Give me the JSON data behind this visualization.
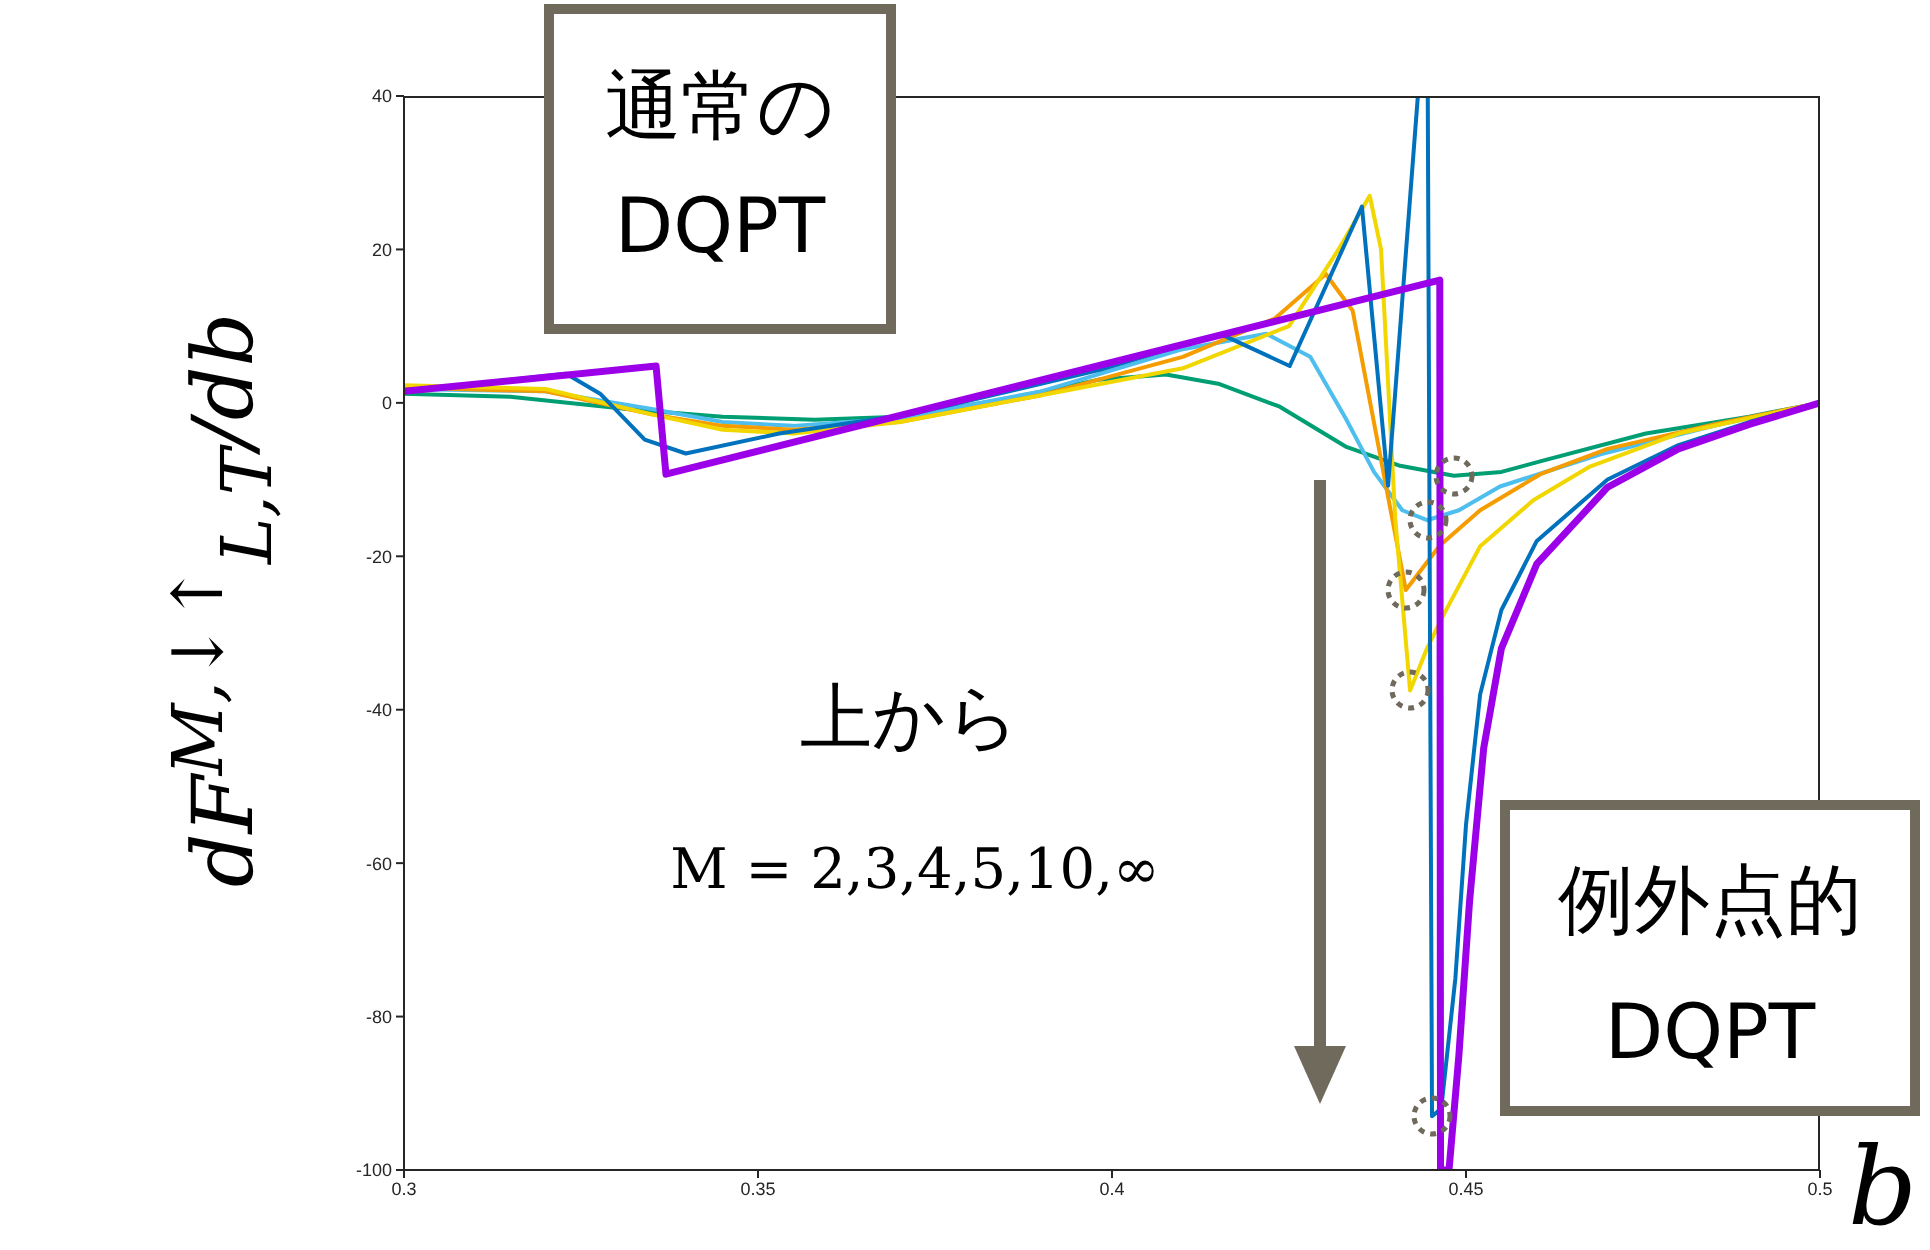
{
  "chart_data": {
    "type": "line",
    "xlabel": "b",
    "ylabel": "dF$^{M,↓↑}$$_{L,T}$/db",
    "annotations": [
      "通常の\nDQPT",
      "上から",
      "M = 2,3,4,5,10,∞",
      "例外点的\nDQPT"
    ],
    "xlim": [
      0.3,
      0.5
    ],
    "xticks": [
      0.3,
      0.35,
      0.4,
      0.45,
      0.5
    ],
    "ylim": [
      -100,
      40
    ],
    "yticks": [
      -100,
      -80,
      -60,
      -40,
      -20,
      0,
      20,
      40
    ],
    "grid": false,
    "legend": false,
    "series": [
      {
        "color": "#009e73",
        "x": [
          0.3,
          0.315,
          0.3325,
          0.345,
          0.358,
          0.37,
          0.385,
          0.398,
          0.4076,
          0.415,
          0.4237,
          0.433,
          0.4407,
          0.4483,
          0.455,
          0.461,
          0.4754,
          0.49,
          0.5
        ],
        "values": [
          1.2,
          0.8,
          -0.9,
          -1.8,
          -2.2,
          -1.8,
          0.5,
          3,
          3.7,
          2.5,
          -0.5,
          -5.7,
          -8.2,
          -9.5,
          -9,
          -7.5,
          -4,
          -1.8,
          0
        ]
      },
      {
        "color": "#4dbeee",
        "x": [
          0.3,
          0.32,
          0.335,
          0.345,
          0.355,
          0.37,
          0.39,
          0.41,
          0.4218,
          0.428,
          0.433,
          0.437,
          0.441,
          0.4445,
          0.449,
          0.4548,
          0.469,
          0.485,
          0.5
        ],
        "values": [
          1.8,
          1.5,
          -0.8,
          -2.5,
          -3,
          -2,
          1.5,
          7,
          9,
          6,
          -2,
          -9,
          -14,
          -15.3,
          -14,
          -10.9,
          -6.7,
          -3,
          0
        ]
      },
      {
        "color": "#f59d00",
        "x": [
          0.3,
          0.32,
          0.335,
          0.345,
          0.355,
          0.37,
          0.39,
          0.41,
          0.423,
          0.4302,
          0.434,
          0.4375,
          0.4415,
          0.4463,
          0.452,
          0.4605,
          0.47,
          0.485,
          0.5
        ],
        "values": [
          2,
          1.5,
          -1.5,
          -3,
          -3.5,
          -2.5,
          1,
          6,
          11,
          16.8,
          12,
          -5,
          -24.4,
          -18.6,
          -14,
          -9.3,
          -6,
          -2.8,
          0
        ]
      },
      {
        "color": "#f2d600",
        "x": [
          0.3,
          0.32,
          0.335,
          0.345,
          0.355,
          0.37,
          0.39,
          0.41,
          0.425,
          0.432,
          0.4364,
          0.438,
          0.44,
          0.4421,
          0.4445,
          0.4469,
          0.452,
          0.4595,
          0.4675,
          0.48,
          0.5
        ],
        "values": [
          2.3,
          1.8,
          -1.5,
          -3.5,
          -4,
          -2.5,
          1,
          4.5,
          10,
          20,
          27,
          20,
          -15,
          -37.5,
          -32,
          -27.5,
          -18.7,
          -12.7,
          -8.3,
          -4,
          0
        ]
      },
      {
        "color": "#0072bd",
        "x": [
          0.3,
          0.3229,
          0.3277,
          0.334,
          0.3398,
          0.353,
          0.372,
          0.3983,
          0.4153,
          0.4251,
          0.4353,
          0.439,
          0.4432,
          0.4446,
          0.4452,
          0.4465,
          0.4485,
          0.45,
          0.452,
          0.455,
          0.46,
          0.47,
          0.48,
          0.49,
          0.5
        ],
        "values": [
          1.5,
          3.8,
          1.2,
          -4.8,
          -6.6,
          -4,
          -1.4,
          4.3,
          9,
          4.8,
          25.6,
          -10.8,
          40,
          40,
          -93,
          -92,
          -75,
          -55,
          -38,
          -27,
          -18,
          -10,
          -5.5,
          -2.5,
          0
        ]
      },
      {
        "color": "#9b00e8",
        "x": [
          0.3,
          0.3356,
          0.337,
          0.4463,
          0.4464,
          0.4476,
          0.449,
          0.4505,
          0.4525,
          0.455,
          0.46,
          0.47,
          0.48,
          0.49,
          0.5
        ],
        "values": [
          1.5,
          4.8,
          -9.3,
          16,
          -100,
          -100,
          -85,
          -65,
          -45,
          -32,
          -21,
          -11,
          -6,
          -2.8,
          0
        ]
      }
    ]
  }
}
